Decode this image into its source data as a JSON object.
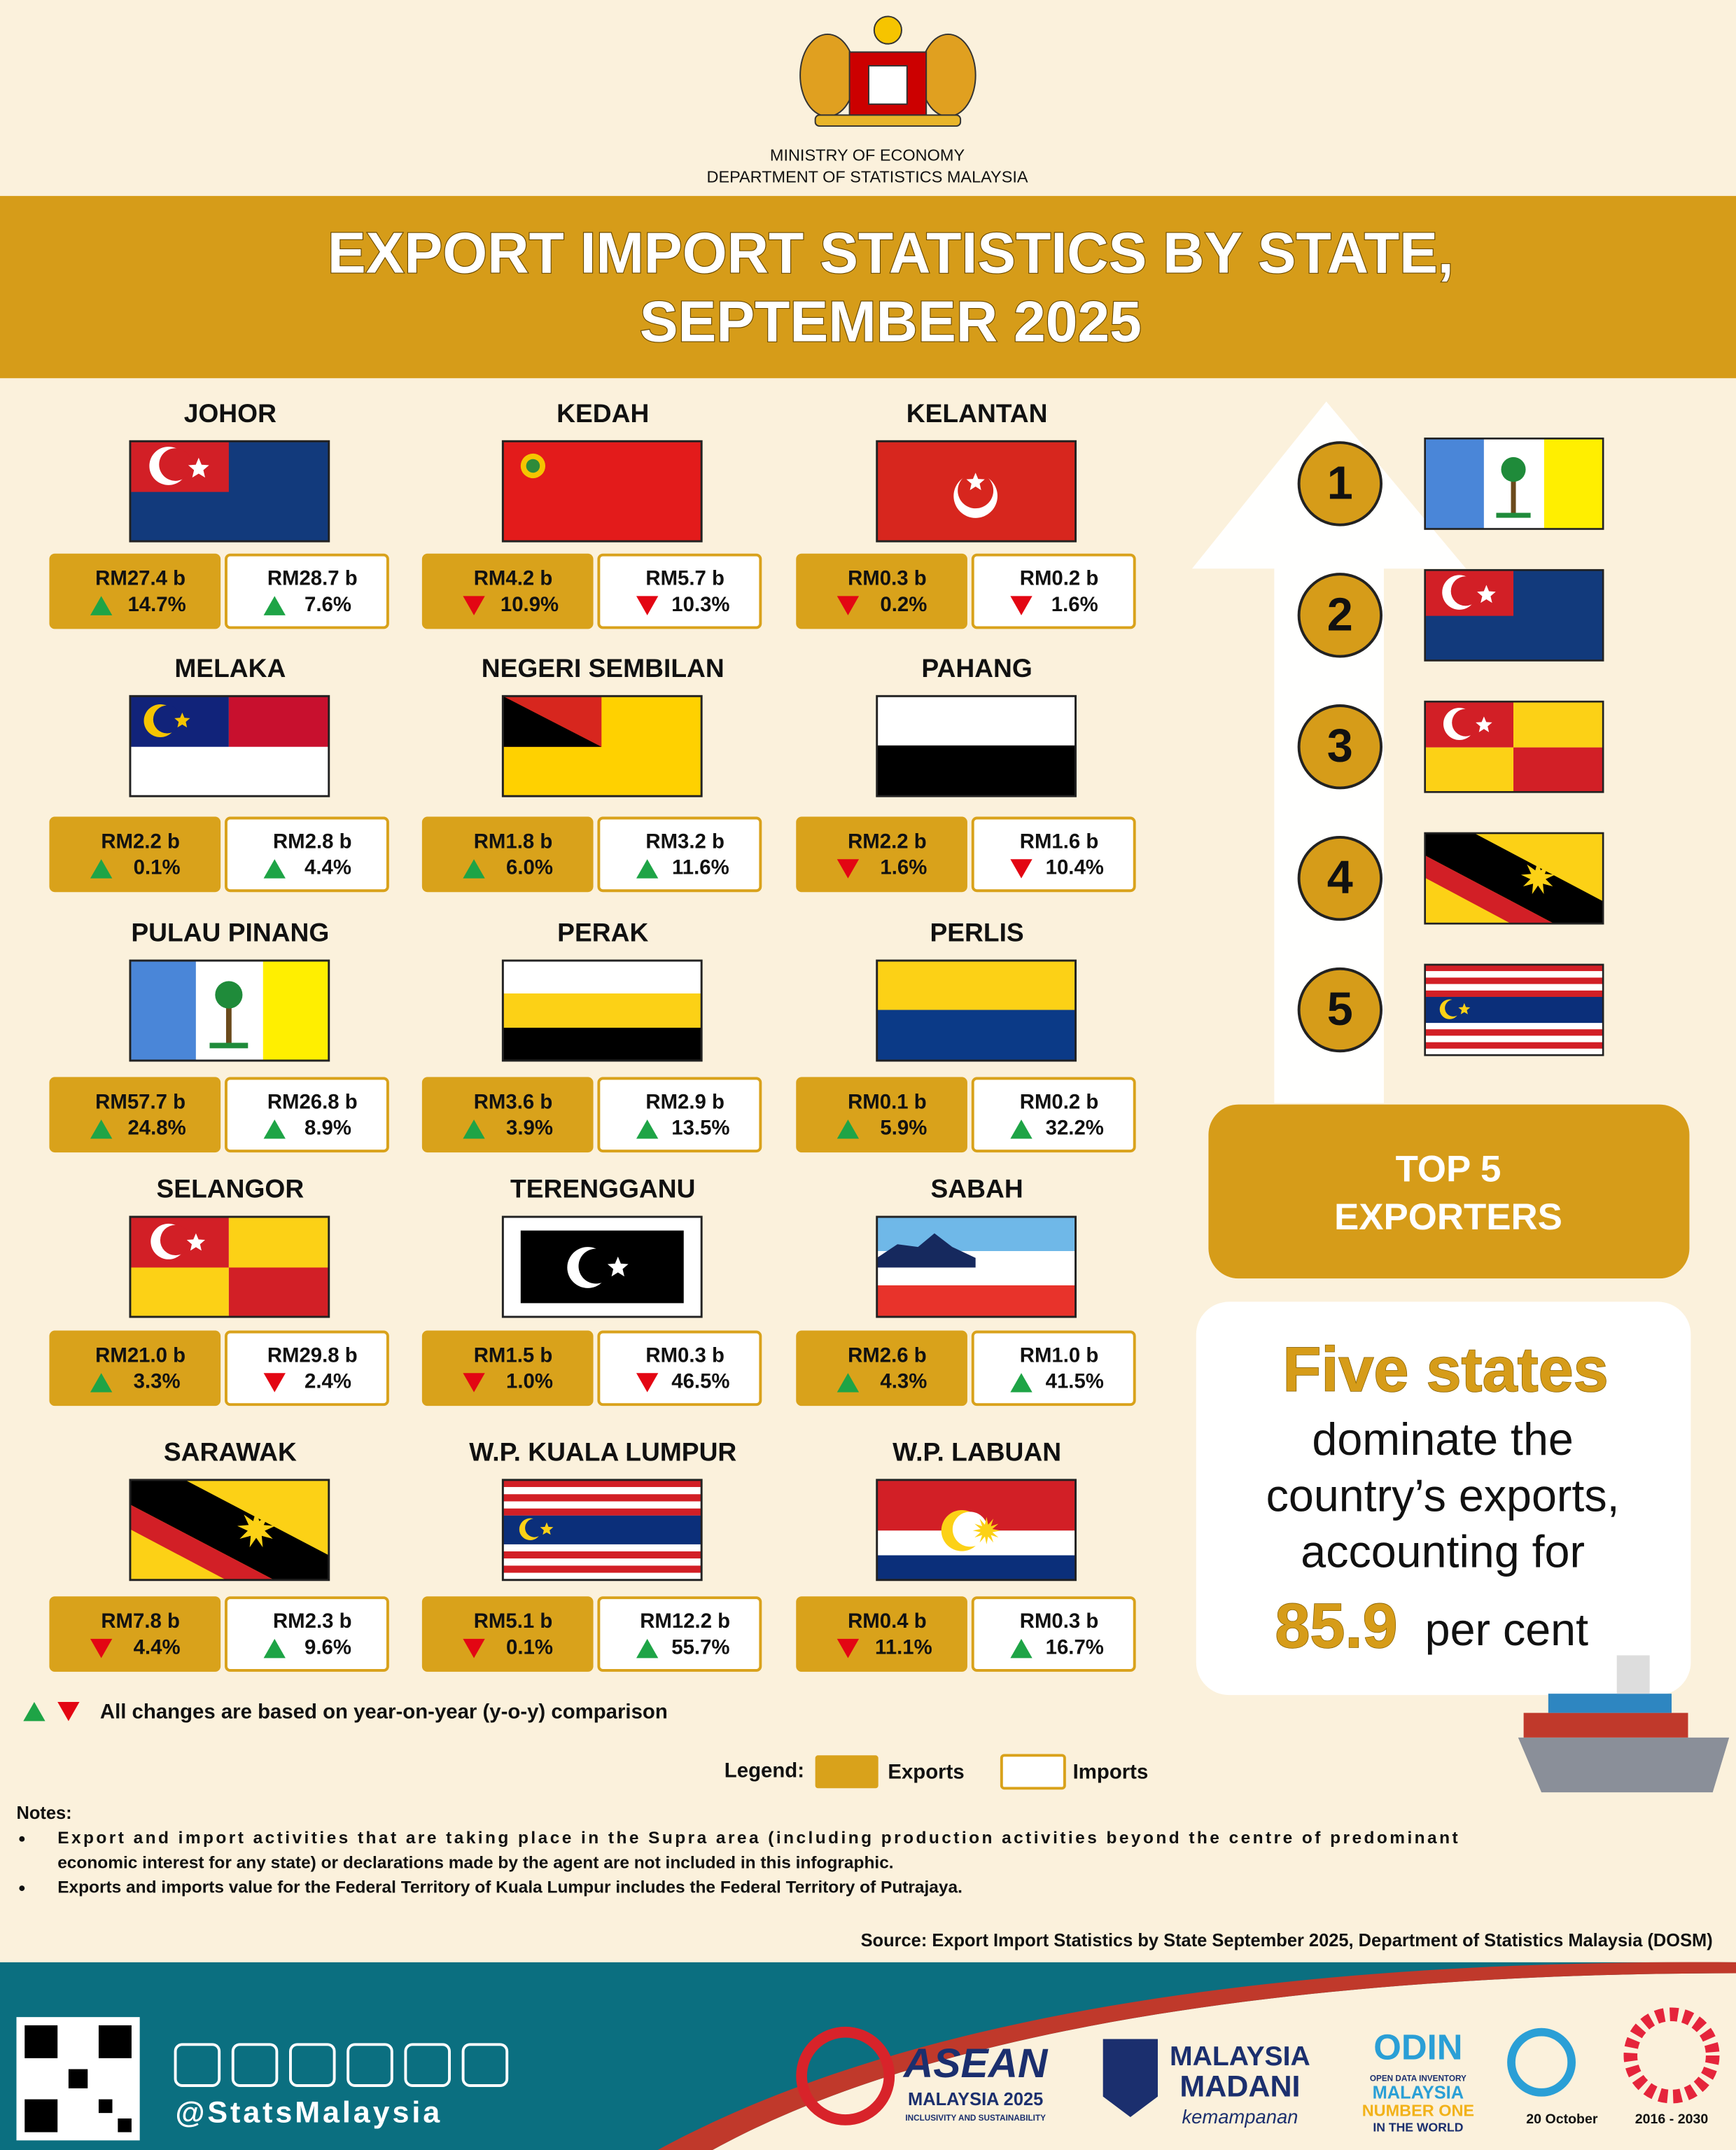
{
  "header": {
    "ministry": "MINISTRY OF ECONOMY",
    "department": "DEPARTMENT OF STATISTICS MALAYSIA",
    "title": [
      "EXPORT IMPORT STATISTICS BY STATE,",
      "SEPTEMBER 2025"
    ]
  },
  "states": [
    {
      "name": "JOHOR",
      "exports": {
        "value": "RM27.4 b",
        "change": "14.7%",
        "direction": "up"
      },
      "imports": {
        "value": "RM28.7 b",
        "change": "7.6%",
        "direction": "up"
      }
    },
    {
      "name": "KEDAH",
      "exports": {
        "value": "RM4.2 b",
        "change": "10.9%",
        "direction": "down"
      },
      "imports": {
        "value": "RM5.7 b",
        "change": "10.3%",
        "direction": "down"
      }
    },
    {
      "name": "KELANTAN",
      "exports": {
        "value": "RM0.3 b",
        "change": "0.2%",
        "direction": "down"
      },
      "imports": {
        "value": "RM0.2 b",
        "change": "1.6%",
        "direction": "down"
      }
    },
    {
      "name": "MELAKA",
      "exports": {
        "value": "RM2.2 b",
        "change": "0.1%",
        "direction": "up"
      },
      "imports": {
        "value": "RM2.8 b",
        "change": "4.4%",
        "direction": "up"
      }
    },
    {
      "name": "NEGERI SEMBILAN",
      "exports": {
        "value": "RM1.8 b",
        "change": "6.0%",
        "direction": "up"
      },
      "imports": {
        "value": "RM3.2 b",
        "change": "11.6%",
        "direction": "up"
      }
    },
    {
      "name": "PAHANG",
      "exports": {
        "value": "RM2.2 b",
        "change": "1.6%",
        "direction": "down"
      },
      "imports": {
        "value": "RM1.6 b",
        "change": "10.4%",
        "direction": "down"
      }
    },
    {
      "name": "PULAU PINANG",
      "exports": {
        "value": "RM57.7 b",
        "change": "24.8%",
        "direction": "up"
      },
      "imports": {
        "value": "RM26.8 b",
        "change": "8.9%",
        "direction": "up"
      }
    },
    {
      "name": "PERAK",
      "exports": {
        "value": "RM3.6 b",
        "change": "3.9%",
        "direction": "up"
      },
      "imports": {
        "value": "RM2.9 b",
        "change": "13.5%",
        "direction": "up"
      }
    },
    {
      "name": "PERLIS",
      "exports": {
        "value": "RM0.1 b",
        "change": "5.9%",
        "direction": "up"
      },
      "imports": {
        "value": "RM0.2 b",
        "change": "32.2%",
        "direction": "up"
      }
    },
    {
      "name": "SELANGOR",
      "exports": {
        "value": "RM21.0 b",
        "change": "3.3%",
        "direction": "up"
      },
      "imports": {
        "value": "RM29.8 b",
        "change": "2.4%",
        "direction": "down"
      }
    },
    {
      "name": "TERENGGANU",
      "exports": {
        "value": "RM1.5 b",
        "change": "1.0%",
        "direction": "down"
      },
      "imports": {
        "value": "RM0.3 b",
        "change": "46.5%",
        "direction": "down"
      }
    },
    {
      "name": "SABAH",
      "exports": {
        "value": "RM2.6 b",
        "change": "4.3%",
        "direction": "up"
      },
      "imports": {
        "value": "RM1.0 b",
        "change": "41.5%",
        "direction": "up"
      }
    },
    {
      "name": "SARAWAK",
      "exports": {
        "value": "RM7.8 b",
        "change": "4.4%",
        "direction": "down"
      },
      "imports": {
        "value": "RM2.3 b",
        "change": "9.6%",
        "direction": "up"
      }
    },
    {
      "name": "W.P. KUALA LUMPUR",
      "exports": {
        "value": "RM5.1 b",
        "change": "0.1%",
        "direction": "down"
      },
      "imports": {
        "value": "RM12.2 b",
        "change": "55.7%",
        "direction": "up"
      }
    },
    {
      "name": "W.P. LABUAN",
      "exports": {
        "value": "RM0.4 b",
        "change": "11.1%",
        "direction": "down"
      },
      "imports": {
        "value": "RM0.3 b",
        "change": "16.7%",
        "direction": "up"
      }
    }
  ],
  "top5": {
    "ranks": [
      "1",
      "2",
      "3",
      "4",
      "5"
    ],
    "label": [
      "TOP 5",
      "EXPORTERS"
    ]
  },
  "callout": {
    "headline": "Five states",
    "lines": [
      "dominate the",
      "country’s exports,",
      "accounting for"
    ],
    "share": "85.9",
    "unit": "per cent"
  },
  "footnote": "All changes are based on year-on-year (y-o-y) comparison",
  "legend": {
    "title": "Legend:",
    "exports": "Exports",
    "imports": "Imports"
  },
  "notes": {
    "title": "Notes:",
    "items": [
      [
        "Export and import activities that are taking place in the Supra area (including production activities beyond the centre of predominant",
        "economic interest for any state) or declarations made by the agent are not included in this infographic."
      ],
      [
        "Exports and imports value for the Federal Territory of Kuala Lumpur includes the Federal Territory of Putrajaya."
      ]
    ]
  },
  "source": "Source: Export Import Statistics by State September 2025, Department of Statistics Malaysia (DOSM)",
  "footer": {
    "handle": "@StatsMalaysia",
    "asean": [
      "ASEAN",
      "MALAYSIA 2025",
      "INCLUSIVITY AND SUSTAINABILITY"
    ],
    "madani": [
      "MALAYSIA",
      "MADANI",
      "kemampanan"
    ],
    "odin": [
      "ODIN",
      "OPEN DATA INVENTORY",
      "MALAYSIA",
      "NUMBER ONE",
      "IN THE WORLD"
    ],
    "statsday": "20 October",
    "sdg": "2016 - 2030"
  }
}
